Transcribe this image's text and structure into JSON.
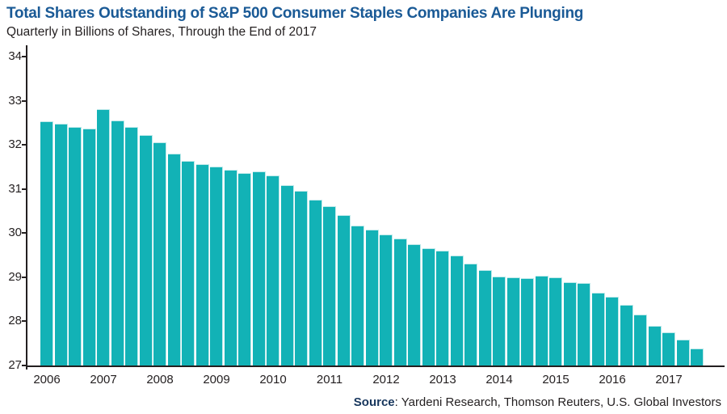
{
  "header": {
    "title": "Total Shares Outstanding of S&P 500 Consumer Staples Companies Are Plunging",
    "subtitle": "Quarterly in Billions of Shares, Through the End of 2017"
  },
  "source_line": {
    "label": "Source",
    "text": ": Yardeni Research, Thomson Reuters, U.S. Global Investors"
  },
  "chart_data": {
    "type": "bar",
    "title": "Total Shares Outstanding of S&P 500 Consumer Staples Companies Are Plunging",
    "subtitle": "Quarterly in Billions of Shares, Through the End of 2017",
    "xlabel": "",
    "ylabel": "",
    "ylim": [
      27,
      34
    ],
    "yticks": [
      34,
      33,
      32,
      31,
      30,
      29,
      28,
      27
    ],
    "grid": false,
    "legend": false,
    "bar_color": "#12b2b6",
    "bar_highlight_color": "#bfe9ea",
    "axis_color": "#231f20",
    "title_color": "#1a5a96",
    "x_tick_labels": [
      "2006",
      "2007",
      "2008",
      "2009",
      "2010",
      "2011",
      "2012",
      "2013",
      "2014",
      "2015",
      "2016",
      "2017"
    ],
    "x_tick_every_n_bars": 4,
    "categories": [
      "2006 Q1",
      "2006 Q2",
      "2006 Q3",
      "2006 Q4",
      "2007 Q1",
      "2007 Q2",
      "2007 Q3",
      "2007 Q4",
      "2008 Q1",
      "2008 Q2",
      "2008 Q3",
      "2008 Q4",
      "2009 Q1",
      "2009 Q2",
      "2009 Q3",
      "2009 Q4",
      "2010 Q1",
      "2010 Q2",
      "2010 Q3",
      "2010 Q4",
      "2011 Q1",
      "2011 Q2",
      "2011 Q3",
      "2011 Q4",
      "2012 Q1",
      "2012 Q2",
      "2012 Q3",
      "2012 Q4",
      "2013 Q1",
      "2013 Q2",
      "2013 Q3",
      "2013 Q4",
      "2014 Q1",
      "2014 Q2",
      "2014 Q3",
      "2014 Q4",
      "2015 Q1",
      "2015 Q2",
      "2015 Q3",
      "2015 Q4",
      "2016 Q1",
      "2016 Q2",
      "2016 Q3",
      "2016 Q4",
      "2017 Q1",
      "2017 Q2",
      "2017 Q3"
    ],
    "values": [
      32.53,
      32.47,
      32.41,
      32.37,
      32.8,
      32.56,
      32.41,
      32.23,
      32.06,
      31.81,
      31.64,
      31.56,
      31.5,
      31.43,
      31.37,
      31.4,
      31.3,
      31.09,
      30.95,
      30.75,
      30.61,
      30.41,
      30.17,
      30.07,
      29.96,
      29.88,
      29.74,
      29.66,
      29.61,
      29.49,
      29.31,
      29.16,
      29.02,
      28.99,
      28.97,
      29.04,
      29.0,
      28.89,
      28.87,
      28.65,
      28.55,
      28.38,
      28.15,
      27.9,
      27.76,
      27.58,
      27.38
    ]
  }
}
